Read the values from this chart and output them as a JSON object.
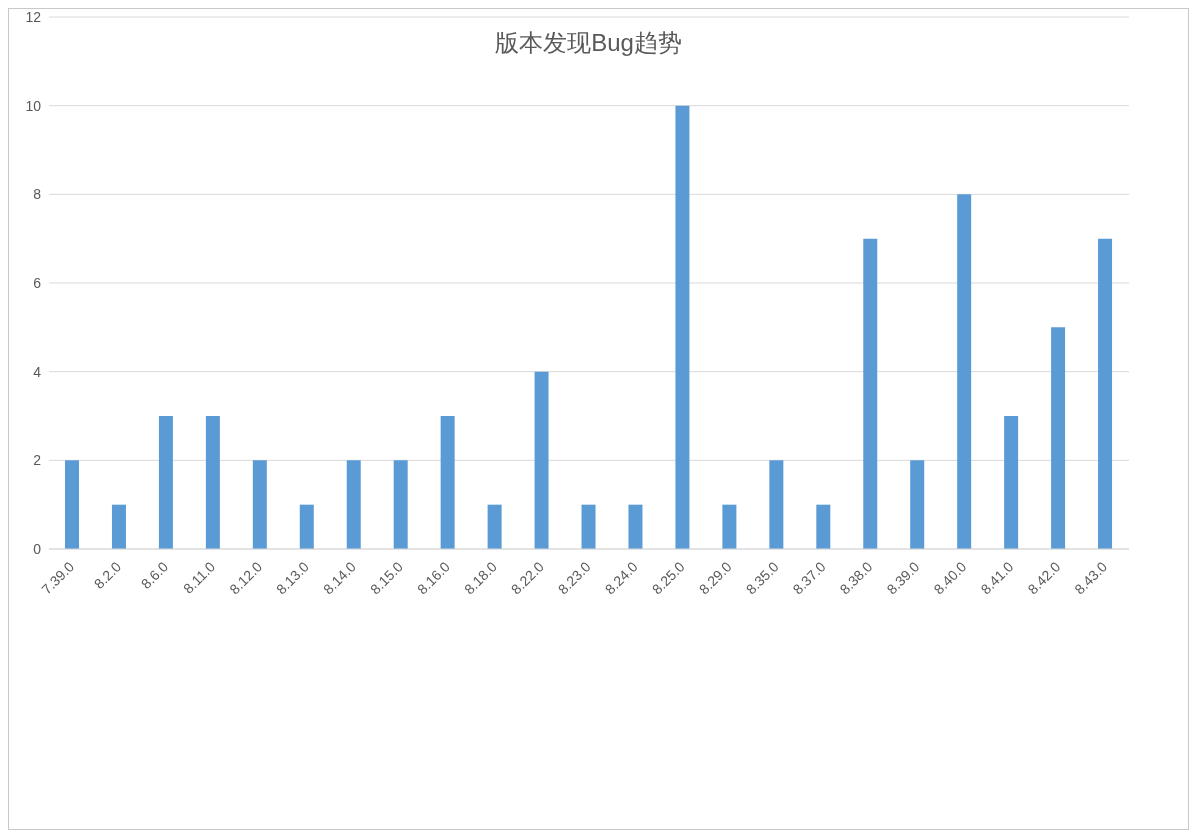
{
  "chart_data": {
    "type": "bar",
    "title": "版本发现Bug趋势",
    "categories": [
      "7.39.0",
      "8.2.0",
      "8.6.0",
      "8.11.0",
      "8.12.0",
      "8.13.0",
      "8.14.0",
      "8.15.0",
      "8.16.0",
      "8.18.0",
      "8.22.0",
      "8.23.0",
      "8.24.0",
      "8.25.0",
      "8.29.0",
      "8.35.0",
      "8.37.0",
      "8.38.0",
      "8.39.0",
      "8.40.0",
      "8.41.0",
      "8.42.0",
      "8.43.0"
    ],
    "values": [
      2,
      1,
      3,
      3,
      2,
      1,
      2,
      2,
      3,
      1,
      4,
      1,
      1,
      10,
      1,
      2,
      1,
      7,
      2,
      8,
      3,
      5,
      7
    ],
    "color": "#5b9bd5",
    "ylim": [
      0,
      12
    ],
    "yticks": [
      0,
      2,
      4,
      6,
      8,
      10,
      12
    ],
    "grid": "y",
    "legend": false
  }
}
